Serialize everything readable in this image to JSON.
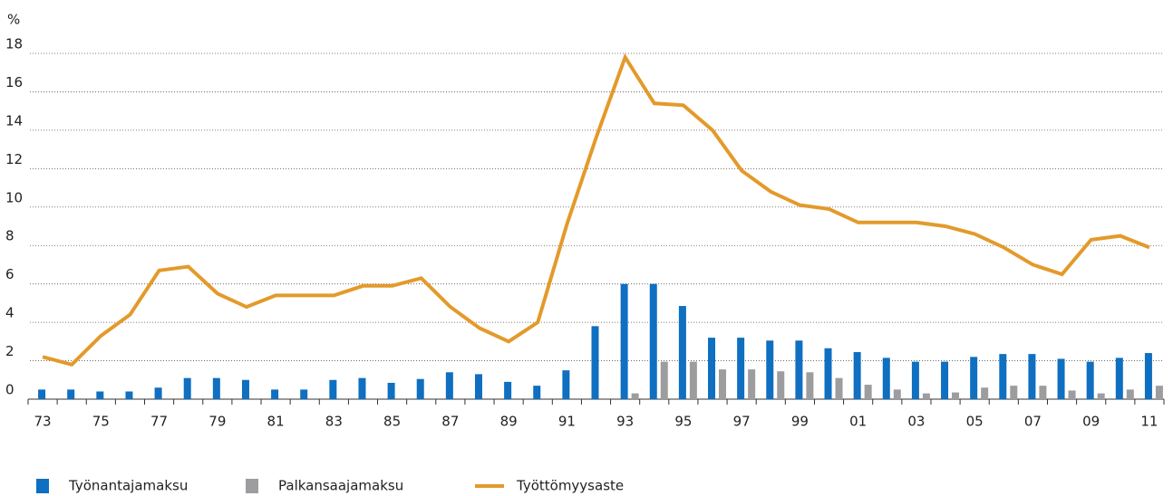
{
  "chart_data": {
    "type": "bar",
    "y_label": "%",
    "categories": [
      "73",
      null,
      "75",
      null,
      "77",
      null,
      "79",
      null,
      "81",
      null,
      "83",
      null,
      "85",
      null,
      "87",
      null,
      "89",
      null,
      "91",
      null,
      "93",
      null,
      "95",
      null,
      "97",
      null,
      "99",
      null,
      "01",
      null,
      "03",
      null,
      "05",
      null,
      "07",
      null,
      "09",
      null,
      "11"
    ],
    "series": [
      {
        "name": "Työnantajamaksu",
        "type": "bar",
        "color": "#0f6fc0",
        "values": [
          0.5,
          0.5,
          0.4,
          0.4,
          0.6,
          1.1,
          1.1,
          1.0,
          0.5,
          0.5,
          1.0,
          1.1,
          0.85,
          1.05,
          1.4,
          1.3,
          0.9,
          0.7,
          1.5,
          3.8,
          6.0,
          6.0,
          4.85,
          3.2,
          3.2,
          3.05,
          3.05,
          2.65,
          2.45,
          2.15,
          1.95,
          1.95,
          2.2,
          2.35,
          2.35,
          2.1,
          1.95,
          2.15,
          2.4
        ]
      },
      {
        "name": "Palkansaajamaksu",
        "type": "bar",
        "color": "#9d9d9f",
        "values": [
          0,
          0,
          0,
          0,
          0,
          0,
          0,
          0,
          0,
          0,
          0,
          0,
          0,
          0,
          0,
          0,
          0,
          0,
          0,
          0,
          0.3,
          1.95,
          1.95,
          1.55,
          1.55,
          1.45,
          1.4,
          1.1,
          0.75,
          0.5,
          0.3,
          0.35,
          0.6,
          0.7,
          0.7,
          0.45,
          0.3,
          0.5,
          0.7
        ]
      },
      {
        "name": "Työttömyysaste",
        "type": "line",
        "color": "#e39a2b",
        "values": [
          2.2,
          1.8,
          3.3,
          4.4,
          6.7,
          6.9,
          5.5,
          4.8,
          5.4,
          5.4,
          5.4,
          5.9,
          5.9,
          6.3,
          4.8,
          3.7,
          3.0,
          4.0,
          9.1,
          13.6,
          17.8,
          15.4,
          15.3,
          14.0,
          11.9,
          10.8,
          10.1,
          9.9,
          9.2,
          9.2,
          9.2,
          9.0,
          8.6,
          7.9,
          7.0,
          6.5,
          8.3,
          8.5,
          7.9
        ]
      }
    ],
    "ylim": [
      0,
      18
    ],
    "yticks": [
      0,
      2,
      4,
      6,
      8,
      10,
      12,
      14,
      16,
      18
    ],
    "grid": true,
    "legend": "bottom-left"
  }
}
